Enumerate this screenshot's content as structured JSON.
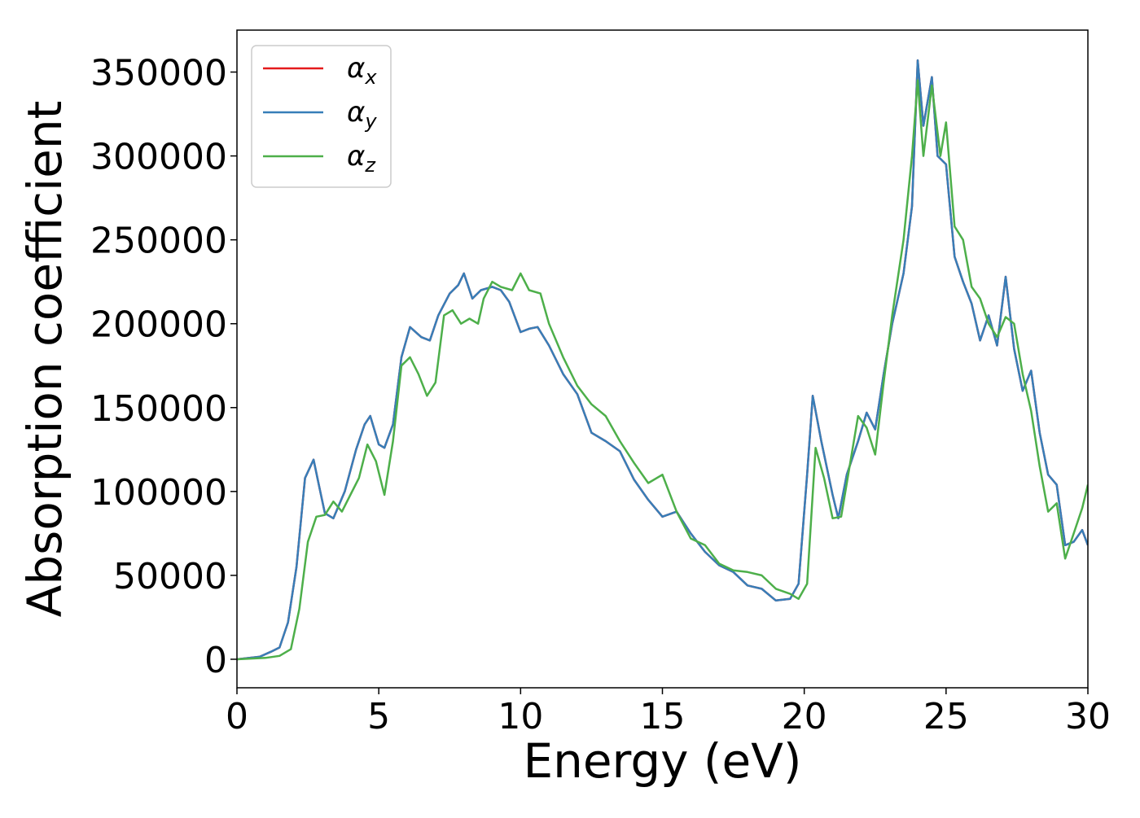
{
  "chart_data": {
    "type": "line",
    "title": "",
    "xlabel": "Energy (eV)",
    "ylabel": "Absorption coefficient",
    "xlim": [
      0,
      30
    ],
    "ylim": [
      -17000,
      375000
    ],
    "xticks": [
      0,
      5,
      10,
      15,
      20,
      25,
      30
    ],
    "yticks": [
      0,
      50000,
      100000,
      150000,
      200000,
      250000,
      300000,
      350000
    ],
    "grid": false,
    "legend_placement": "upper-left",
    "series": [
      {
        "name": "α_x",
        "color": "#e41a1c",
        "x": [
          0,
          0.8,
          1.2,
          1.5,
          1.8,
          2.1,
          2.4,
          2.7,
          2.9,
          3.1,
          3.4,
          3.8,
          4.2,
          4.5,
          4.7,
          5.0,
          5.2,
          5.5,
          5.8,
          6.1,
          6.5,
          6.8,
          7.1,
          7.5,
          7.8,
          8.0,
          8.3,
          8.6,
          9.0,
          9.3,
          9.6,
          10.0,
          10.3,
          10.6,
          11.0,
          11.5,
          12.0,
          12.5,
          13.0,
          13.5,
          14.0,
          14.5,
          15.0,
          15.5,
          16.0,
          16.5,
          17.0,
          17.5,
          18.0,
          18.5,
          19.0,
          19.5,
          19.8,
          20.1,
          20.3,
          20.6,
          21.0,
          21.2,
          21.5,
          21.9,
          22.2,
          22.5,
          22.8,
          23.1,
          23.5,
          23.8,
          24.0,
          24.2,
          24.5,
          24.7,
          25.0,
          25.3,
          25.6,
          25.9,
          26.2,
          26.5,
          26.8,
          27.1,
          27.4,
          27.7,
          28.0,
          28.3,
          28.6,
          28.9,
          29.2,
          29.5,
          29.8,
          30.0
        ],
        "values": [
          0,
          1500,
          4500,
          7000,
          22000,
          55000,
          108000,
          119000,
          103000,
          87000,
          84000,
          100000,
          125000,
          140000,
          145000,
          128000,
          126000,
          140000,
          180000,
          198000,
          192000,
          190000,
          205000,
          218000,
          223000,
          230000,
          215000,
          220000,
          222000,
          220000,
          213000,
          195000,
          197000,
          198000,
          187000,
          170000,
          158000,
          135000,
          130000,
          124000,
          107000,
          95000,
          85000,
          88000,
          75000,
          64000,
          56000,
          52000,
          44000,
          42000,
          35000,
          36000,
          45000,
          110000,
          157000,
          130000,
          98000,
          84000,
          110000,
          130000,
          147000,
          137000,
          170000,
          200000,
          230000,
          270000,
          357000,
          318000,
          347000,
          300000,
          295000,
          240000,
          225000,
          212000,
          190000,
          205000,
          187000,
          228000,
          185000,
          160000,
          172000,
          135000,
          110000,
          104000,
          68000,
          70000,
          77000,
          68000
        ]
      },
      {
        "name": "α_y",
        "color": "#377eb8",
        "x": [
          0,
          0.8,
          1.2,
          1.5,
          1.8,
          2.1,
          2.4,
          2.7,
          2.9,
          3.1,
          3.4,
          3.8,
          4.2,
          4.5,
          4.7,
          5.0,
          5.2,
          5.5,
          5.8,
          6.1,
          6.5,
          6.8,
          7.1,
          7.5,
          7.8,
          8.0,
          8.3,
          8.6,
          9.0,
          9.3,
          9.6,
          10.0,
          10.3,
          10.6,
          11.0,
          11.5,
          12.0,
          12.5,
          13.0,
          13.5,
          14.0,
          14.5,
          15.0,
          15.5,
          16.0,
          16.5,
          17.0,
          17.5,
          18.0,
          18.5,
          19.0,
          19.5,
          19.8,
          20.1,
          20.3,
          20.6,
          21.0,
          21.2,
          21.5,
          21.9,
          22.2,
          22.5,
          22.8,
          23.1,
          23.5,
          23.8,
          24.0,
          24.2,
          24.5,
          24.7,
          25.0,
          25.3,
          25.6,
          25.9,
          26.2,
          26.5,
          26.8,
          27.1,
          27.4,
          27.7,
          28.0,
          28.3,
          28.6,
          28.9,
          29.2,
          29.5,
          29.8,
          30.0
        ],
        "values": [
          0,
          1500,
          4500,
          7000,
          22000,
          55000,
          108000,
          119000,
          103000,
          87000,
          84000,
          100000,
          125000,
          140000,
          145000,
          128000,
          126000,
          140000,
          180000,
          198000,
          192000,
          190000,
          205000,
          218000,
          223000,
          230000,
          215000,
          220000,
          222000,
          220000,
          213000,
          195000,
          197000,
          198000,
          187000,
          170000,
          158000,
          135000,
          130000,
          124000,
          107000,
          95000,
          85000,
          88000,
          75000,
          64000,
          56000,
          52000,
          44000,
          42000,
          35000,
          36000,
          45000,
          110000,
          157000,
          130000,
          98000,
          84000,
          110000,
          130000,
          147000,
          137000,
          170000,
          200000,
          230000,
          270000,
          357000,
          318000,
          347000,
          300000,
          295000,
          240000,
          225000,
          212000,
          190000,
          205000,
          187000,
          228000,
          185000,
          160000,
          172000,
          135000,
          110000,
          104000,
          68000,
          70000,
          77000,
          68000
        ]
      },
      {
        "name": "α_z",
        "color": "#4daf4a",
        "x": [
          0,
          1.0,
          1.5,
          1.9,
          2.2,
          2.5,
          2.8,
          3.1,
          3.4,
          3.7,
          4.0,
          4.3,
          4.6,
          4.9,
          5.2,
          5.5,
          5.8,
          6.1,
          6.4,
          6.7,
          7.0,
          7.3,
          7.6,
          7.9,
          8.2,
          8.5,
          8.7,
          9.0,
          9.3,
          9.7,
          10.0,
          10.3,
          10.7,
          11.0,
          11.5,
          12.0,
          12.5,
          13.0,
          13.5,
          14.0,
          14.5,
          15.0,
          15.5,
          16.0,
          16.5,
          17.0,
          17.5,
          18.0,
          18.5,
          19.0,
          19.5,
          19.8,
          20.1,
          20.4,
          20.7,
          21.0,
          21.3,
          21.6,
          21.9,
          22.2,
          22.5,
          22.8,
          23.1,
          23.5,
          23.8,
          24.0,
          24.2,
          24.5,
          24.8,
          25.0,
          25.3,
          25.6,
          25.9,
          26.2,
          26.5,
          26.8,
          27.1,
          27.4,
          27.7,
          28.0,
          28.3,
          28.6,
          28.9,
          29.2,
          29.5,
          29.8,
          30.0
        ],
        "values": [
          0,
          800,
          2000,
          6000,
          30000,
          70000,
          85000,
          86000,
          94000,
          88000,
          98000,
          108000,
          128000,
          118000,
          98000,
          130000,
          175000,
          180000,
          170000,
          157000,
          165000,
          205000,
          208000,
          200000,
          203000,
          200000,
          215000,
          225000,
          222000,
          220000,
          230000,
          220000,
          218000,
          200000,
          180000,
          163000,
          152000,
          145000,
          130000,
          117000,
          105000,
          110000,
          88000,
          72000,
          68000,
          57000,
          53000,
          52000,
          50000,
          42000,
          39000,
          36000,
          45000,
          126000,
          108000,
          84000,
          85000,
          115000,
          145000,
          138000,
          122000,
          165000,
          205000,
          250000,
          300000,
          345000,
          300000,
          342000,
          300000,
          320000,
          258000,
          250000,
          222000,
          215000,
          200000,
          192000,
          204000,
          200000,
          170000,
          148000,
          115000,
          88000,
          93000,
          60000,
          75000,
          90000,
          104000
        ]
      }
    ]
  }
}
